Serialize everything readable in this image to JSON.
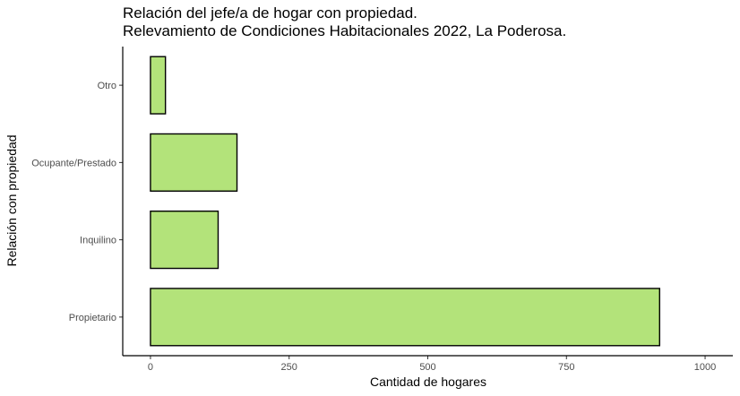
{
  "chart_data": {
    "type": "bar",
    "orientation": "horizontal",
    "title": "Relación del jefe/a de hogar con propiedad.",
    "subtitle": "Relevamiento de Condiciones Habitacionales 2022, La Poderosa.",
    "xlabel": "Cantidad de hogares",
    "ylabel": "Relación con propiedad",
    "categories": [
      "Propietario",
      "Inquilino",
      "Ocupante/Prestado",
      "Otro"
    ],
    "values": [
      918,
      122,
      156,
      27
    ],
    "xlim": [
      -50,
      1050
    ],
    "xticks": [
      0,
      250,
      500,
      750,
      1000
    ],
    "xtick_labels": [
      "0",
      "250",
      "500",
      "750",
      "1000"
    ],
    "grid": false,
    "bar_color": "#b3e37a",
    "bar_edge_color": "#000000"
  }
}
